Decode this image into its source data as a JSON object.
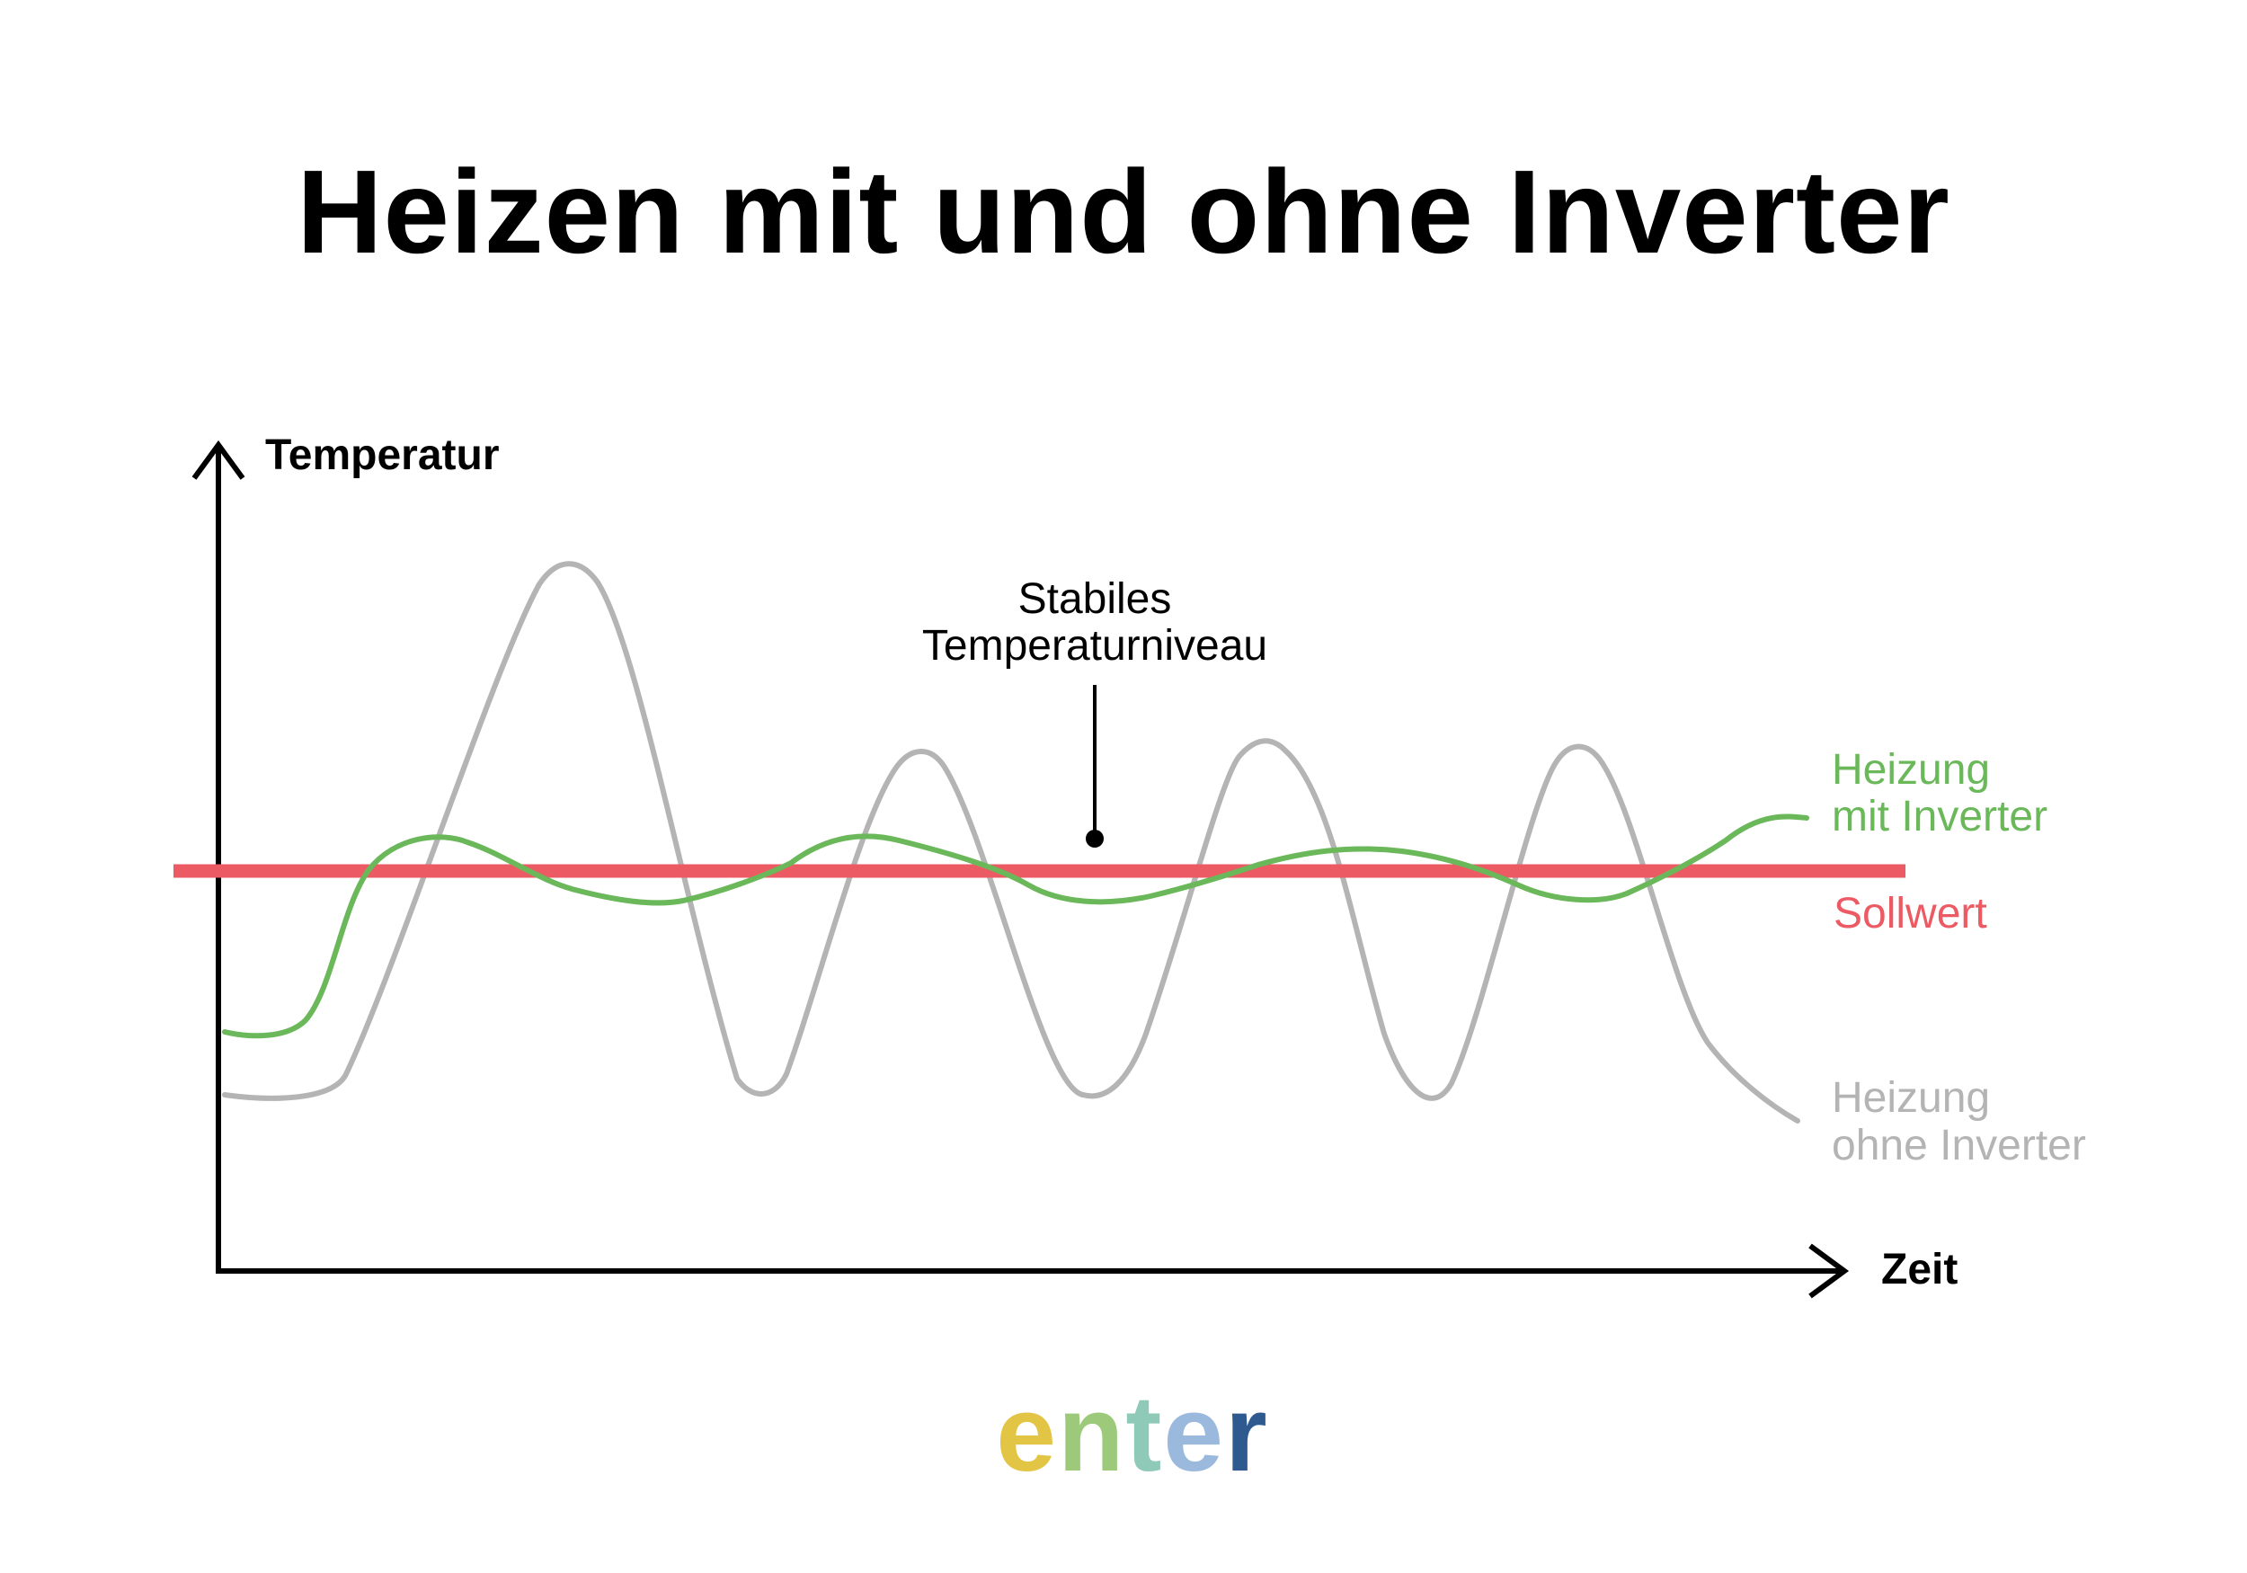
{
  "title": "Heizen mit und ohne Inverter",
  "axes": {
    "y_label": "Temperatur",
    "x_label": "Zeit"
  },
  "annotation": {
    "line1": "Stabiles",
    "line2": "Temperaturniveau"
  },
  "legend": {
    "with_inverter": {
      "line1": "Heizung",
      "line2": "mit Inverter"
    },
    "setpoint": "Sollwert",
    "without_inverter": {
      "line1": "Heizung",
      "line2": "ohne Inverter"
    }
  },
  "logo": {
    "text": "enter",
    "letters": [
      "e",
      "n",
      "t",
      "e",
      "r"
    ],
    "letter_colors": [
      "#e3c545",
      "#9cc97a",
      "#8fc9b8",
      "#9bb9dc",
      "#2e5a8f"
    ]
  },
  "colors": {
    "axis": "#000000",
    "with_inverter": "#6ab85a",
    "without_inverter": "#b4b4b4",
    "setpoint": "#ec5a63",
    "text": "#000000"
  }
}
